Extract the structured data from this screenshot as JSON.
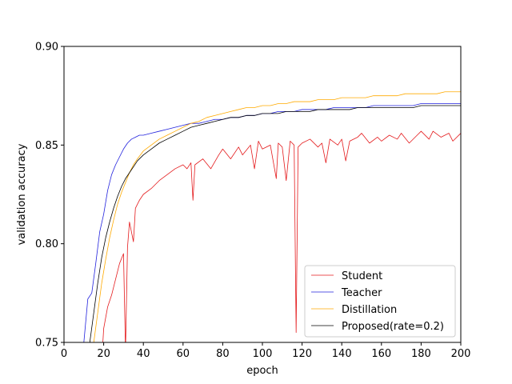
{
  "chart_data": {
    "type": "line",
    "title": "",
    "xlabel": "epoch",
    "ylabel": "validation accuracy",
    "xlim": [
      0,
      200
    ],
    "ylim": [
      0.75,
      0.9
    ],
    "xticks": [
      0,
      20,
      40,
      60,
      80,
      100,
      120,
      140,
      160,
      180,
      200
    ],
    "xtick_labels": [
      "0",
      "20",
      "40",
      "60",
      "80",
      "100",
      "120",
      "140",
      "160",
      "180",
      "200"
    ],
    "yticks": [
      0.75,
      0.8,
      0.85,
      0.9
    ],
    "ytick_labels": [
      "0.75",
      "0.80",
      "0.85",
      "0.90"
    ],
    "grid": false,
    "legend_position": "lower-right",
    "series": [
      {
        "name": "Student",
        "color": "#e41a1c",
        "points": [
          [
            19,
            0.74
          ],
          [
            20,
            0.757
          ],
          [
            22,
            0.768
          ],
          [
            24,
            0.774
          ],
          [
            26,
            0.782
          ],
          [
            28,
            0.79
          ],
          [
            30,
            0.795
          ],
          [
            31,
            0.745
          ],
          [
            32,
            0.798
          ],
          [
            33,
            0.811
          ],
          [
            35,
            0.801
          ],
          [
            36,
            0.818
          ],
          [
            38,
            0.822
          ],
          [
            40,
            0.825
          ],
          [
            44,
            0.828
          ],
          [
            48,
            0.832
          ],
          [
            52,
            0.835
          ],
          [
            56,
            0.838
          ],
          [
            60,
            0.84
          ],
          [
            62,
            0.838
          ],
          [
            64,
            0.841
          ],
          [
            65,
            0.822
          ],
          [
            66,
            0.84
          ],
          [
            70,
            0.843
          ],
          [
            74,
            0.838
          ],
          [
            78,
            0.845
          ],
          [
            80,
            0.848
          ],
          [
            84,
            0.843
          ],
          [
            88,
            0.849
          ],
          [
            90,
            0.845
          ],
          [
            94,
            0.85
          ],
          [
            96,
            0.838
          ],
          [
            98,
            0.852
          ],
          [
            100,
            0.848
          ],
          [
            104,
            0.85
          ],
          [
            107,
            0.833
          ],
          [
            108,
            0.851
          ],
          [
            110,
            0.849
          ],
          [
            112,
            0.832
          ],
          [
            114,
            0.852
          ],
          [
            116,
            0.85
          ],
          [
            117,
            0.755
          ],
          [
            118,
            0.849
          ],
          [
            120,
            0.851
          ],
          [
            124,
            0.853
          ],
          [
            128,
            0.849
          ],
          [
            130,
            0.851
          ],
          [
            132,
            0.841
          ],
          [
            134,
            0.853
          ],
          [
            138,
            0.85
          ],
          [
            140,
            0.853
          ],
          [
            142,
            0.842
          ],
          [
            144,
            0.852
          ],
          [
            148,
            0.854
          ],
          [
            150,
            0.856
          ],
          [
            154,
            0.851
          ],
          [
            158,
            0.854
          ],
          [
            160,
            0.852
          ],
          [
            164,
            0.855
          ],
          [
            168,
            0.853
          ],
          [
            170,
            0.856
          ],
          [
            174,
            0.851
          ],
          [
            178,
            0.855
          ],
          [
            180,
            0.857
          ],
          [
            184,
            0.853
          ],
          [
            186,
            0.857
          ],
          [
            190,
            0.854
          ],
          [
            194,
            0.856
          ],
          [
            196,
            0.852
          ],
          [
            200,
            0.856
          ]
        ]
      },
      {
        "name": "Teacher",
        "color": "#2222dd",
        "points": [
          [
            10,
            0.75
          ],
          [
            12,
            0.772
          ],
          [
            14,
            0.775
          ],
          [
            16,
            0.79
          ],
          [
            18,
            0.806
          ],
          [
            20,
            0.815
          ],
          [
            22,
            0.827
          ],
          [
            24,
            0.835
          ],
          [
            26,
            0.84
          ],
          [
            28,
            0.844
          ],
          [
            30,
            0.848
          ],
          [
            32,
            0.851
          ],
          [
            34,
            0.853
          ],
          [
            36,
            0.854
          ],
          [
            38,
            0.855
          ],
          [
            40,
            0.855
          ],
          [
            44,
            0.856
          ],
          [
            48,
            0.857
          ],
          [
            52,
            0.858
          ],
          [
            56,
            0.859
          ],
          [
            60,
            0.86
          ],
          [
            64,
            0.861
          ],
          [
            68,
            0.861
          ],
          [
            72,
            0.862
          ],
          [
            76,
            0.863
          ],
          [
            80,
            0.863
          ],
          [
            84,
            0.864
          ],
          [
            88,
            0.864
          ],
          [
            92,
            0.865
          ],
          [
            96,
            0.865
          ],
          [
            100,
            0.866
          ],
          [
            104,
            0.866
          ],
          [
            108,
            0.867
          ],
          [
            112,
            0.867
          ],
          [
            116,
            0.867
          ],
          [
            120,
            0.868
          ],
          [
            124,
            0.868
          ],
          [
            128,
            0.868
          ],
          [
            132,
            0.868
          ],
          [
            136,
            0.869
          ],
          [
            140,
            0.869
          ],
          [
            144,
            0.869
          ],
          [
            148,
            0.869
          ],
          [
            152,
            0.869
          ],
          [
            156,
            0.87
          ],
          [
            160,
            0.87
          ],
          [
            164,
            0.87
          ],
          [
            168,
            0.87
          ],
          [
            172,
            0.87
          ],
          [
            176,
            0.87
          ],
          [
            180,
            0.871
          ],
          [
            184,
            0.871
          ],
          [
            188,
            0.871
          ],
          [
            192,
            0.871
          ],
          [
            196,
            0.871
          ],
          [
            200,
            0.871
          ]
        ]
      },
      {
        "name": "Distillation",
        "color": "#ffaa00",
        "points": [
          [
            15,
            0.75
          ],
          [
            17,
            0.765
          ],
          [
            19,
            0.78
          ],
          [
            21,
            0.792
          ],
          [
            23,
            0.803
          ],
          [
            25,
            0.812
          ],
          [
            27,
            0.82
          ],
          [
            29,
            0.826
          ],
          [
            31,
            0.831
          ],
          [
            33,
            0.836
          ],
          [
            35,
            0.84
          ],
          [
            37,
            0.843
          ],
          [
            40,
            0.847
          ],
          [
            44,
            0.85
          ],
          [
            48,
            0.853
          ],
          [
            52,
            0.855
          ],
          [
            56,
            0.857
          ],
          [
            60,
            0.859
          ],
          [
            64,
            0.861
          ],
          [
            68,
            0.862
          ],
          [
            72,
            0.864
          ],
          [
            76,
            0.865
          ],
          [
            80,
            0.866
          ],
          [
            84,
            0.867
          ],
          [
            88,
            0.868
          ],
          [
            92,
            0.869
          ],
          [
            96,
            0.869
          ],
          [
            100,
            0.87
          ],
          [
            104,
            0.87
          ],
          [
            108,
            0.871
          ],
          [
            112,
            0.871
          ],
          [
            116,
            0.872
          ],
          [
            120,
            0.872
          ],
          [
            124,
            0.872
          ],
          [
            128,
            0.873
          ],
          [
            132,
            0.873
          ],
          [
            136,
            0.873
          ],
          [
            140,
            0.874
          ],
          [
            144,
            0.874
          ],
          [
            148,
            0.874
          ],
          [
            152,
            0.874
          ],
          [
            156,
            0.875
          ],
          [
            160,
            0.875
          ],
          [
            164,
            0.875
          ],
          [
            168,
            0.875
          ],
          [
            172,
            0.876
          ],
          [
            176,
            0.876
          ],
          [
            180,
            0.876
          ],
          [
            184,
            0.876
          ],
          [
            188,
            0.876
          ],
          [
            192,
            0.877
          ],
          [
            196,
            0.877
          ],
          [
            200,
            0.877
          ]
        ]
      },
      {
        "name": "Proposed(rate=0.2)",
        "color": "#000000",
        "points": [
          [
            13,
            0.75
          ],
          [
            15,
            0.765
          ],
          [
            17,
            0.78
          ],
          [
            19,
            0.793
          ],
          [
            21,
            0.803
          ],
          [
            23,
            0.811
          ],
          [
            25,
            0.818
          ],
          [
            27,
            0.824
          ],
          [
            29,
            0.829
          ],
          [
            31,
            0.833
          ],
          [
            33,
            0.836
          ],
          [
            35,
            0.839
          ],
          [
            37,
            0.842
          ],
          [
            40,
            0.845
          ],
          [
            44,
            0.848
          ],
          [
            48,
            0.851
          ],
          [
            52,
            0.853
          ],
          [
            56,
            0.855
          ],
          [
            60,
            0.857
          ],
          [
            64,
            0.859
          ],
          [
            68,
            0.86
          ],
          [
            72,
            0.861
          ],
          [
            76,
            0.862
          ],
          [
            80,
            0.863
          ],
          [
            84,
            0.864
          ],
          [
            88,
            0.864
          ],
          [
            92,
            0.865
          ],
          [
            96,
            0.865
          ],
          [
            100,
            0.866
          ],
          [
            104,
            0.866
          ],
          [
            108,
            0.866
          ],
          [
            112,
            0.867
          ],
          [
            116,
            0.867
          ],
          [
            120,
            0.867
          ],
          [
            124,
            0.867
          ],
          [
            128,
            0.868
          ],
          [
            132,
            0.868
          ],
          [
            136,
            0.868
          ],
          [
            140,
            0.868
          ],
          [
            144,
            0.868
          ],
          [
            148,
            0.869
          ],
          [
            152,
            0.869
          ],
          [
            156,
            0.869
          ],
          [
            160,
            0.869
          ],
          [
            164,
            0.869
          ],
          [
            168,
            0.869
          ],
          [
            172,
            0.869
          ],
          [
            176,
            0.869
          ],
          [
            180,
            0.87
          ],
          [
            184,
            0.87
          ],
          [
            188,
            0.87
          ],
          [
            192,
            0.87
          ],
          [
            196,
            0.87
          ],
          [
            200,
            0.87
          ]
        ]
      }
    ]
  }
}
